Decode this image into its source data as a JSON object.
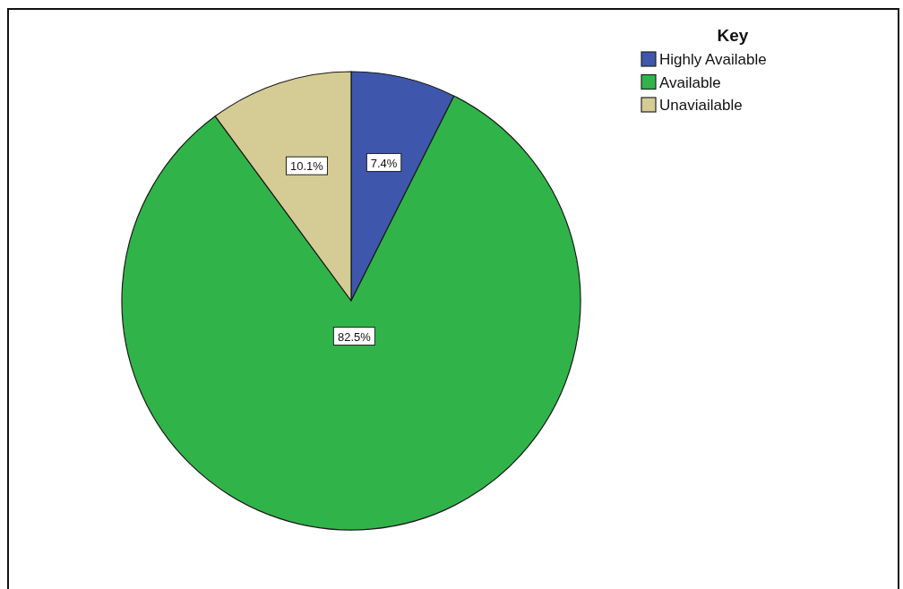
{
  "chart_data": {
    "type": "pie",
    "legend_title": "Key",
    "categories": [
      "Highly Available",
      "Available",
      "Unaviailable"
    ],
    "values": [
      7.4,
      82.5,
      10.1
    ],
    "colors": [
      "#3e57ac",
      "#30b44a",
      "#d4cc94"
    ],
    "value_labels": [
      "7.4%",
      "82.5%",
      "10.1%"
    ],
    "legend": "top right"
  }
}
